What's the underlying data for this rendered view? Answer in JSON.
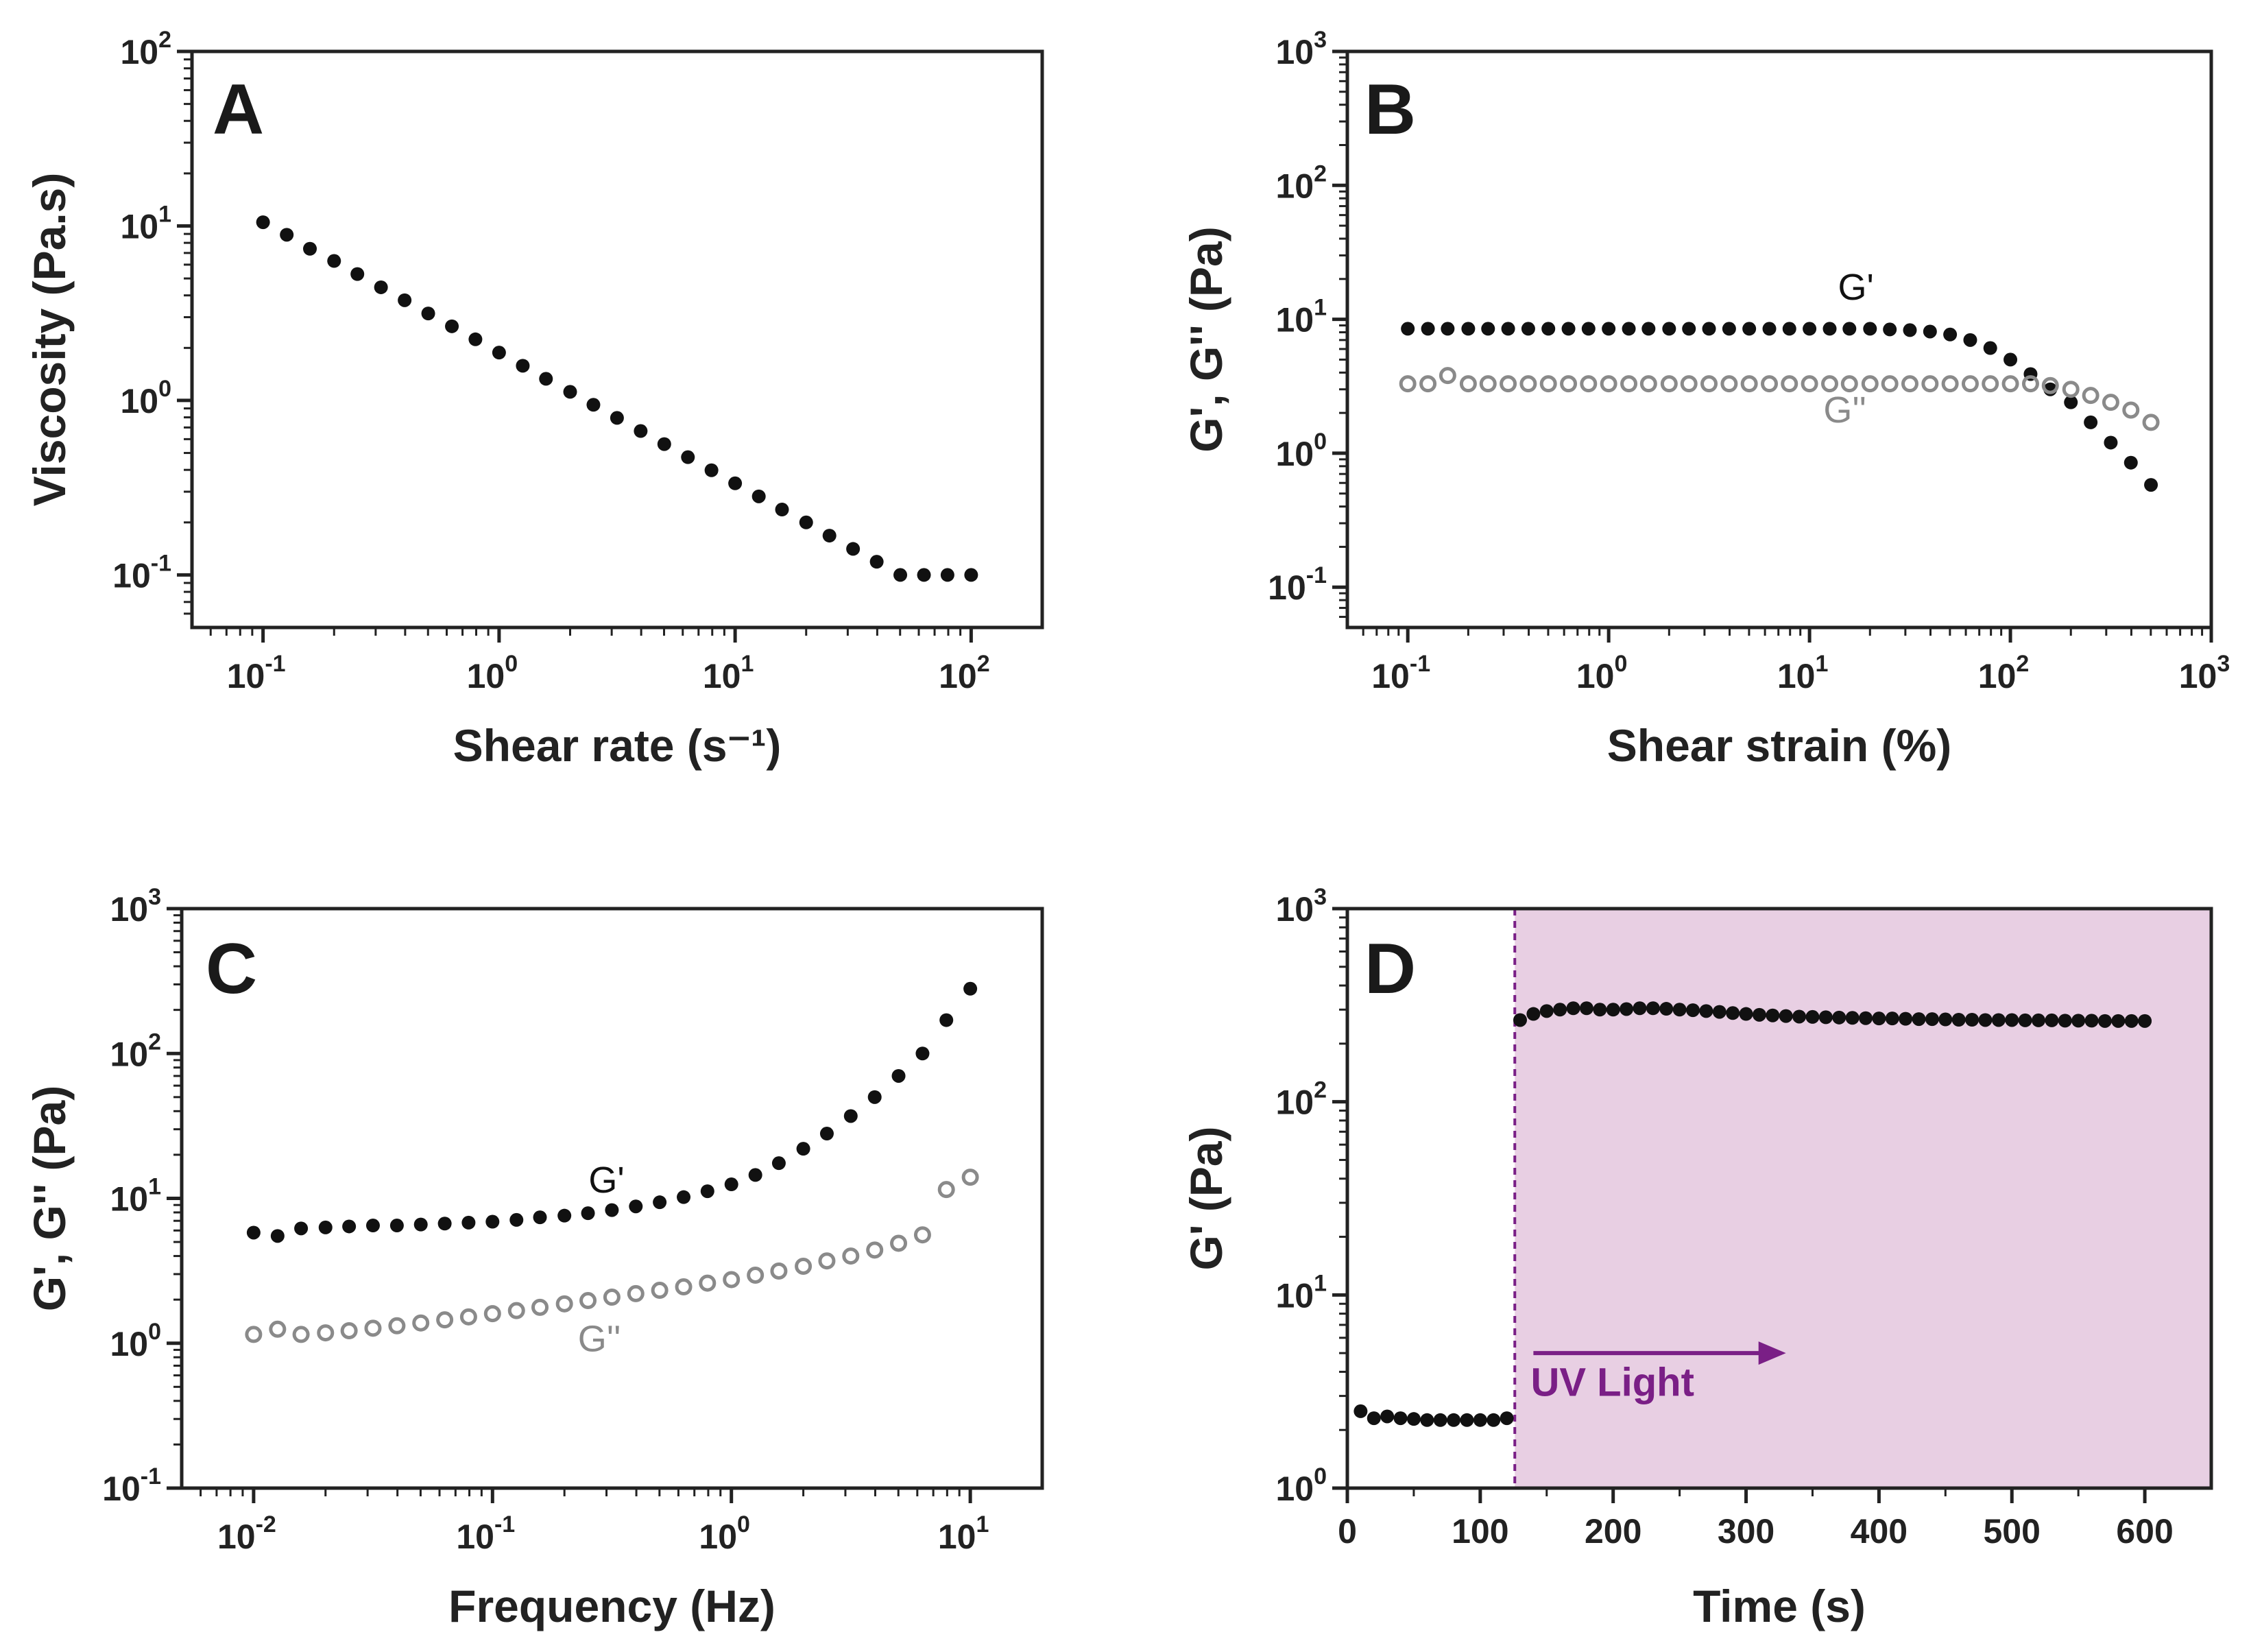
{
  "colors": {
    "filled": "#111111",
    "open": "#8a8a8a",
    "uv_region": "#e8cfe3",
    "uv_line": "#7a1f86",
    "axis": "#222222"
  },
  "chart_data": [
    {
      "type": "scatter",
      "panel": "A",
      "xlabel": "Shear rate (s⁻¹)",
      "ylabel": "Viscosity (Pa.s)",
      "xscale": "log",
      "yscale": "log",
      "xlim": [
        0.05,
        200
      ],
      "ylim": [
        0.05,
        100
      ],
      "xticks": [
        {
          "base": "10",
          "exp": "-1",
          "v": 0.1
        },
        {
          "base": "10",
          "exp": "0",
          "v": 1
        },
        {
          "base": "10",
          "exp": "1",
          "v": 10
        },
        {
          "base": "10",
          "exp": "2",
          "v": 100
        }
      ],
      "yticks": [
        {
          "base": "10",
          "exp": "-1",
          "v": 0.1
        },
        {
          "base": "10",
          "exp": "0",
          "v": 1
        },
        {
          "base": "10",
          "exp": "1",
          "v": 10
        },
        {
          "base": "10",
          "exp": "2",
          "v": 100
        }
      ],
      "series": [
        {
          "name": "Viscosity",
          "style": "filled",
          "x": [
            0.1,
            0.126,
            0.158,
            0.2,
            0.251,
            0.316,
            0.398,
            0.501,
            0.631,
            0.794,
            1,
            1.26,
            1.58,
            2,
            2.51,
            3.16,
            3.98,
            5.01,
            6.31,
            7.94,
            10,
            12.6,
            15.8,
            20,
            25.1,
            31.6,
            39.8,
            50.1,
            63.1,
            79.4,
            100
          ],
          "y": [
            10.5,
            8.9,
            7.4,
            6.3,
            5.3,
            4.45,
            3.75,
            3.15,
            2.66,
            2.24,
            1.88,
            1.58,
            1.33,
            1.12,
            0.944,
            0.794,
            0.668,
            0.562,
            0.473,
            0.398,
            0.335,
            0.282,
            0.237,
            0.2,
            0.168,
            0.141,
            0.119,
            0.1,
            0.1,
            0.1,
            0.1
          ]
        }
      ]
    },
    {
      "type": "scatter",
      "panel": "B",
      "xlabel": "Shear strain (%)",
      "ylabel": "G', G'' (Pa)",
      "xscale": "log",
      "yscale": "log",
      "xlim": [
        0.05,
        1000
      ],
      "ylim": [
        0.05,
        1000
      ],
      "xticks": [
        {
          "base": "10",
          "exp": "-1",
          "v": 0.1
        },
        {
          "base": "10",
          "exp": "0",
          "v": 1
        },
        {
          "base": "10",
          "exp": "1",
          "v": 10
        },
        {
          "base": "10",
          "exp": "2",
          "v": 100
        },
        {
          "base": "10",
          "exp": "3",
          "v": 1000
        }
      ],
      "yticks": [
        {
          "base": "10",
          "exp": "-1",
          "v": 0.1
        },
        {
          "base": "10",
          "exp": "0",
          "v": 1
        },
        {
          "base": "10",
          "exp": "1",
          "v": 10
        },
        {
          "base": "10",
          "exp": "2",
          "v": 100
        },
        {
          "base": "10",
          "exp": "3",
          "v": 1000
        }
      ],
      "series": [
        {
          "name": "G'",
          "style": "filled",
          "x": [
            0.1,
            0.126,
            0.158,
            0.2,
            0.251,
            0.316,
            0.398,
            0.501,
            0.631,
            0.794,
            1,
            1.26,
            1.58,
            2,
            2.51,
            3.16,
            3.98,
            5.01,
            6.31,
            7.94,
            10,
            12.6,
            15.8,
            20,
            25.1,
            31.6,
            39.8,
            50.1,
            63.1,
            79.4,
            100,
            126,
            158,
            200,
            251,
            316,
            398,
            501
          ],
          "y": [
            8.5,
            8.5,
            8.5,
            8.5,
            8.5,
            8.5,
            8.5,
            8.5,
            8.5,
            8.5,
            8.5,
            8.5,
            8.5,
            8.5,
            8.5,
            8.5,
            8.5,
            8.5,
            8.5,
            8.5,
            8.5,
            8.5,
            8.5,
            8.5,
            8.4,
            8.3,
            8.1,
            7.7,
            7.0,
            6.1,
            5.0,
            3.9,
            3.0,
            2.4,
            1.7,
            1.2,
            0.85,
            0.58
          ]
        },
        {
          "name": "G''",
          "style": "open",
          "x": [
            0.1,
            0.126,
            0.158,
            0.2,
            0.251,
            0.316,
            0.398,
            0.501,
            0.631,
            0.794,
            1,
            1.26,
            1.58,
            2,
            2.51,
            3.16,
            3.98,
            5.01,
            6.31,
            7.94,
            10,
            12.6,
            15.8,
            20,
            25.1,
            31.6,
            39.8,
            50.1,
            63.1,
            79.4,
            100,
            126,
            158,
            200,
            251,
            316,
            398,
            501
          ],
          "y": [
            3.3,
            3.3,
            3.8,
            3.3,
            3.3,
            3.3,
            3.3,
            3.3,
            3.3,
            3.3,
            3.3,
            3.3,
            3.3,
            3.3,
            3.3,
            3.3,
            3.3,
            3.3,
            3.3,
            3.3,
            3.3,
            3.3,
            3.3,
            3.3,
            3.3,
            3.3,
            3.3,
            3.3,
            3.3,
            3.3,
            3.3,
            3.3,
            3.2,
            3.0,
            2.7,
            2.4,
            2.1,
            1.7
          ]
        }
      ],
      "labels": [
        {
          "text": "G'",
          "x": 17,
          "y": 14,
          "style": "filled"
        },
        {
          "text": "G''",
          "x": 15,
          "y": 1.7,
          "style": "open"
        }
      ]
    },
    {
      "type": "scatter",
      "panel": "C",
      "xlabel": "Frequency (Hz)",
      "ylabel": "G', G'' (Pa)",
      "xscale": "log",
      "yscale": "log",
      "xlim": [
        0.005,
        20
      ],
      "ylim": [
        0.1,
        1000
      ],
      "xticks": [
        {
          "base": "10",
          "exp": "-2",
          "v": 0.01
        },
        {
          "base": "10",
          "exp": "-1",
          "v": 0.1
        },
        {
          "base": "10",
          "exp": "0",
          "v": 1
        },
        {
          "base": "10",
          "exp": "1",
          "v": 10
        }
      ],
      "yticks": [
        {
          "base": "10",
          "exp": "-1",
          "v": 0.1
        },
        {
          "base": "10",
          "exp": "0",
          "v": 1
        },
        {
          "base": "10",
          "exp": "1",
          "v": 10
        },
        {
          "base": "10",
          "exp": "2",
          "v": 100
        },
        {
          "base": "10",
          "exp": "3",
          "v": 1000
        }
      ],
      "series": [
        {
          "name": "G'",
          "style": "filled",
          "x": [
            0.01,
            0.0126,
            0.0158,
            0.02,
            0.0251,
            0.0316,
            0.0398,
            0.0501,
            0.0631,
            0.0794,
            0.1,
            0.126,
            0.158,
            0.2,
            0.251,
            0.316,
            0.398,
            0.501,
            0.631,
            0.794,
            1,
            1.26,
            1.58,
            2,
            2.51,
            3.16,
            3.98,
            5.01,
            6.31,
            7.94,
            10
          ],
          "y": [
            5.8,
            5.5,
            6.2,
            6.3,
            6.4,
            6.5,
            6.5,
            6.6,
            6.7,
            6.8,
            6.9,
            7.1,
            7.4,
            7.6,
            7.9,
            8.3,
            8.8,
            9.4,
            10.2,
            11.2,
            12.5,
            14.5,
            17.5,
            22,
            28,
            37,
            50,
            70,
            100,
            170,
            280
          ]
        },
        {
          "name": "G''",
          "style": "open",
          "x": [
            0.01,
            0.0126,
            0.0158,
            0.02,
            0.0251,
            0.0316,
            0.0398,
            0.0501,
            0.0631,
            0.0794,
            0.1,
            0.126,
            0.158,
            0.2,
            0.251,
            0.316,
            0.398,
            0.501,
            0.631,
            0.794,
            1,
            1.26,
            1.58,
            2,
            2.51,
            3.16,
            3.98,
            5.01,
            6.31,
            7.94,
            10
          ],
          "y": [
            1.15,
            1.25,
            1.15,
            1.18,
            1.22,
            1.27,
            1.32,
            1.38,
            1.45,
            1.52,
            1.6,
            1.68,
            1.77,
            1.87,
            1.97,
            2.08,
            2.2,
            2.32,
            2.45,
            2.6,
            2.75,
            2.95,
            3.15,
            3.4,
            3.7,
            4.0,
            4.4,
            4.9,
            5.6,
            11.5,
            14
          ]
        }
      ],
      "labels": [
        {
          "text": "G'",
          "x": 0.3,
          "y": 11,
          "style": "filled"
        },
        {
          "text": "G''",
          "x": 0.28,
          "y": 0.88,
          "style": "open"
        }
      ]
    },
    {
      "type": "scatter",
      "panel": "D",
      "xlabel": "Time (s)",
      "ylabel": "G' (Pa)",
      "xscale": "linear",
      "yscale": "log",
      "xlim": [
        0,
        650
      ],
      "ylim": [
        1,
        1000
      ],
      "xticks": [
        {
          "label": "0",
          "v": 0
        },
        {
          "label": "100",
          "v": 100
        },
        {
          "label": "200",
          "v": 200
        },
        {
          "label": "300",
          "v": 300
        },
        {
          "label": "400",
          "v": 400
        },
        {
          "label": "500",
          "v": 500
        },
        {
          "label": "600",
          "v": 600
        }
      ],
      "yticks": [
        {
          "base": "10",
          "exp": "0",
          "v": 1
        },
        {
          "base": "10",
          "exp": "1",
          "v": 10
        },
        {
          "base": "10",
          "exp": "2",
          "v": 100
        },
        {
          "base": "10",
          "exp": "3",
          "v": 1000
        }
      ],
      "uv_region": {
        "start": 126,
        "end": 650
      },
      "annotation": {
        "text": "UV Light",
        "arrow_from": 140,
        "arrow_to": 330,
        "arrow_y": 5,
        "text_x": 138,
        "text_y": 3
      },
      "series": [
        {
          "name": "G'",
          "style": "filled",
          "x": [
            10,
            20,
            30,
            40,
            50,
            60,
            70,
            80,
            90,
            100,
            110,
            120,
            130,
            140,
            150,
            160,
            170,
            180,
            190,
            200,
            210,
            220,
            230,
            240,
            250,
            260,
            270,
            280,
            290,
            300,
            310,
            320,
            330,
            340,
            350,
            360,
            370,
            380,
            390,
            400,
            410,
            420,
            430,
            440,
            450,
            460,
            470,
            480,
            490,
            500,
            510,
            520,
            530,
            540,
            550,
            560,
            570,
            580,
            590,
            600
          ],
          "y": [
            2.5,
            2.3,
            2.35,
            2.3,
            2.28,
            2.25,
            2.25,
            2.25,
            2.25,
            2.25,
            2.25,
            2.3,
            265,
            285,
            295,
            300,
            305,
            305,
            300,
            300,
            302,
            305,
            305,
            303,
            300,
            298,
            295,
            292,
            288,
            285,
            282,
            280,
            278,
            276,
            275,
            274,
            273,
            272,
            271,
            270,
            270,
            269,
            268,
            268,
            267,
            266,
            266,
            265,
            265,
            265,
            264,
            264,
            264,
            263,
            263,
            263,
            262,
            262,
            262,
            262
          ]
        }
      ]
    }
  ]
}
